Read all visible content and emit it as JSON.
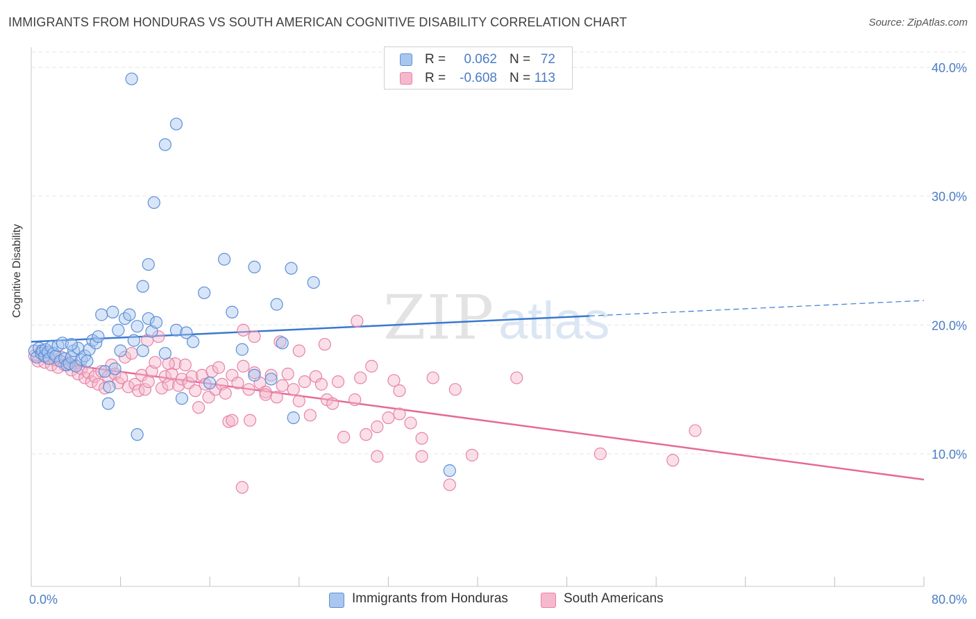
{
  "title": "IMMIGRANTS FROM HONDURAS VS SOUTH AMERICAN COGNITIVE DISABILITY CORRELATION CHART",
  "source": "Source: ZipAtlas.com",
  "watermark": {
    "zip": "ZIP",
    "atlas": "atlas"
  },
  "stats": {
    "blue": {
      "r_label": "R =",
      "r_value": "0.062",
      "n_label": "N =",
      "n_value": "72"
    },
    "pink": {
      "r_label": "R =",
      "r_value": "-0.608",
      "n_label": "N =",
      "n_value": "113"
    }
  },
  "colors": {
    "blue_fill": "#a9c6ef",
    "blue_stroke": "#5b8fd6",
    "blue_line": "#3a78d0",
    "pink_fill": "#f5b8cd",
    "pink_stroke": "#e882a6",
    "pink_line": "#e56a98",
    "grid": "#e6e6e6",
    "axis_text": "#4a7cc4"
  },
  "chart_data": {
    "type": "scatter",
    "ylabel": "Cognitive Disability",
    "xlim": [
      0,
      80
    ],
    "ylim": [
      0,
      42
    ],
    "x_tick_labels": [
      {
        "value": 0,
        "label": "0.0%"
      },
      {
        "value": 80,
        "label": "80.0%"
      }
    ],
    "y_tick_labels": [
      {
        "value": 10,
        "label": "10.0%"
      },
      {
        "value": 20,
        "label": "20.0%"
      },
      {
        "value": 30,
        "label": "30.0%"
      },
      {
        "value": 40,
        "label": "40.0%"
      }
    ],
    "x_minor_ticks": [
      0,
      8,
      16,
      24,
      32,
      40,
      48,
      56,
      64,
      72,
      80
    ],
    "grid": true,
    "legend_position": "bottom-center",
    "series": [
      {
        "name": "Immigrants from Honduras",
        "color": "#5b8fd6",
        "trend": {
          "x0": 0,
          "y0": 18.7,
          "x1": 50,
          "y1": 20.7,
          "dashed_to_x": 80,
          "dashed_to_y": 21.9
        },
        "points": [
          [
            0.3,
            18.0
          ],
          [
            0.5,
            17.5
          ],
          [
            0.7,
            18.2
          ],
          [
            0.9,
            17.8
          ],
          [
            1.0,
            18.0
          ],
          [
            1.2,
            17.6
          ],
          [
            1.3,
            18.1
          ],
          [
            1.5,
            17.9
          ],
          [
            1.6,
            17.4
          ],
          [
            1.8,
            18.3
          ],
          [
            2.0,
            17.8
          ],
          [
            2.2,
            17.6
          ],
          [
            2.4,
            18.4
          ],
          [
            2.6,
            17.2
          ],
          [
            2.8,
            18.6
          ],
          [
            3.0,
            17.4
          ],
          [
            3.2,
            16.9
          ],
          [
            3.4,
            17.0
          ],
          [
            3.6,
            17.5
          ],
          [
            3.8,
            18.0
          ],
          [
            4.0,
            16.8
          ],
          [
            4.2,
            18.2
          ],
          [
            4.5,
            17.3
          ],
          [
            4.8,
            17.6
          ],
          [
            5.0,
            17.2
          ],
          [
            5.2,
            18.1
          ],
          [
            5.5,
            18.8
          ],
          [
            5.8,
            18.6
          ],
          [
            6.0,
            19.1
          ],
          [
            6.3,
            20.8
          ],
          [
            6.6,
            16.4
          ],
          [
            7.0,
            15.2
          ],
          [
            7.3,
            21.0
          ],
          [
            7.8,
            19.6
          ],
          [
            8.0,
            18.0
          ],
          [
            8.4,
            20.5
          ],
          [
            8.8,
            20.8
          ],
          [
            9.2,
            18.8
          ],
          [
            9.5,
            19.9
          ],
          [
            10.0,
            18.0
          ],
          [
            10.5,
            20.5
          ],
          [
            10.8,
            19.5
          ],
          [
            11.2,
            20.2
          ],
          [
            12.0,
            17.8
          ],
          [
            13.0,
            19.6
          ],
          [
            13.5,
            14.3
          ],
          [
            14.5,
            18.7
          ],
          [
            15.5,
            22.5
          ],
          [
            16.0,
            15.5
          ],
          [
            17.3,
            25.1
          ],
          [
            18.0,
            21.0
          ],
          [
            18.9,
            18.1
          ],
          [
            20.0,
            24.5
          ],
          [
            22.5,
            18.6
          ],
          [
            11.0,
            29.5
          ],
          [
            13.0,
            35.6
          ],
          [
            9.0,
            39.1
          ],
          [
            12.0,
            34.0
          ],
          [
            10.5,
            24.7
          ],
          [
            10.0,
            23.0
          ],
          [
            6.9,
            13.9
          ],
          [
            9.5,
            11.5
          ],
          [
            13.9,
            19.4
          ],
          [
            23.3,
            24.4
          ],
          [
            23.5,
            12.8
          ],
          [
            25.3,
            23.3
          ],
          [
            37.5,
            8.7
          ],
          [
            20.0,
            16.1
          ],
          [
            21.5,
            15.8
          ],
          [
            3.6,
            18.5
          ],
          [
            22.0,
            21.6
          ],
          [
            7.5,
            16.6
          ]
        ]
      },
      {
        "name": "South Americans",
        "color": "#e882a6",
        "trend": {
          "x0": 0,
          "y0": 17.3,
          "x1": 80,
          "y1": 8.0
        },
        "points": [
          [
            0.3,
            17.6
          ],
          [
            0.6,
            17.2
          ],
          [
            0.9,
            18.0
          ],
          [
            1.2,
            17.1
          ],
          [
            1.5,
            17.4
          ],
          [
            1.8,
            16.9
          ],
          [
            2.1,
            17.3
          ],
          [
            2.4,
            16.7
          ],
          [
            2.7,
            17.5
          ],
          [
            3.0,
            16.9
          ],
          [
            3.3,
            17.1
          ],
          [
            3.6,
            16.5
          ],
          [
            3.9,
            16.9
          ],
          [
            4.2,
            16.2
          ],
          [
            4.5,
            16.6
          ],
          [
            4.8,
            15.9
          ],
          [
            5.1,
            16.3
          ],
          [
            5.4,
            15.6
          ],
          [
            5.7,
            16.0
          ],
          [
            6.0,
            15.4
          ],
          [
            6.3,
            16.4
          ],
          [
            6.6,
            15.1
          ],
          [
            6.9,
            16.0
          ],
          [
            7.2,
            16.9
          ],
          [
            7.5,
            16.2
          ],
          [
            7.8,
            15.5
          ],
          [
            8.1,
            15.9
          ],
          [
            8.4,
            17.5
          ],
          [
            8.7,
            15.2
          ],
          [
            9.0,
            17.8
          ],
          [
            9.3,
            15.4
          ],
          [
            9.6,
            14.9
          ],
          [
            9.9,
            16.1
          ],
          [
            10.2,
            15.0
          ],
          [
            10.5,
            15.6
          ],
          [
            10.8,
            16.4
          ],
          [
            11.1,
            17.1
          ],
          [
            11.4,
            19.1
          ],
          [
            11.7,
            15.1
          ],
          [
            12.0,
            16.0
          ],
          [
            12.3,
            15.4
          ],
          [
            12.6,
            16.2
          ],
          [
            12.9,
            17.0
          ],
          [
            13.2,
            15.3
          ],
          [
            13.5,
            15.8
          ],
          [
            13.8,
            16.9
          ],
          [
            14.1,
            15.5
          ],
          [
            14.4,
            16.0
          ],
          [
            14.7,
            14.9
          ],
          [
            15.0,
            13.6
          ],
          [
            15.3,
            16.1
          ],
          [
            15.6,
            15.4
          ],
          [
            15.9,
            14.4
          ],
          [
            16.2,
            16.4
          ],
          [
            16.5,
            15.0
          ],
          [
            16.8,
            16.7
          ],
          [
            17.1,
            15.4
          ],
          [
            17.4,
            14.7
          ],
          [
            17.7,
            12.5
          ],
          [
            18.0,
            16.1
          ],
          [
            18.5,
            15.5
          ],
          [
            19.0,
            16.8
          ],
          [
            19.5,
            15.0
          ],
          [
            20.0,
            16.3
          ],
          [
            20.5,
            15.5
          ],
          [
            21.0,
            14.8
          ],
          [
            21.5,
            16.1
          ],
          [
            22.0,
            14.4
          ],
          [
            22.5,
            15.3
          ],
          [
            23.0,
            16.2
          ],
          [
            23.5,
            15.0
          ],
          [
            24.0,
            14.1
          ],
          [
            24.5,
            15.6
          ],
          [
            25.0,
            13.0
          ],
          [
            25.5,
            16.0
          ],
          [
            26.0,
            15.4
          ],
          [
            26.5,
            14.2
          ],
          [
            27.0,
            13.9
          ],
          [
            27.5,
            15.6
          ],
          [
            28.0,
            11.3
          ],
          [
            29.0,
            14.2
          ],
          [
            29.5,
            15.9
          ],
          [
            30.0,
            11.5
          ],
          [
            30.5,
            16.8
          ],
          [
            31.0,
            12.1
          ],
          [
            32.0,
            12.8
          ],
          [
            33.0,
            13.1
          ],
          [
            34.0,
            12.4
          ],
          [
            35.0,
            9.8
          ],
          [
            36.0,
            15.9
          ],
          [
            37.5,
            7.6
          ],
          [
            38.0,
            15.0
          ],
          [
            39.5,
            9.9
          ],
          [
            35.0,
            11.2
          ],
          [
            29.2,
            20.3
          ],
          [
            26.3,
            18.5
          ],
          [
            24.0,
            18.0
          ],
          [
            22.3,
            18.7
          ],
          [
            20.0,
            19.1
          ],
          [
            19.0,
            19.6
          ],
          [
            18.0,
            12.6
          ],
          [
            19.6,
            12.6
          ],
          [
            18.9,
            7.4
          ],
          [
            31.0,
            9.8
          ],
          [
            21.0,
            14.6
          ],
          [
            32.5,
            15.7
          ],
          [
            33.0,
            14.9
          ],
          [
            12.3,
            17.0
          ],
          [
            10.4,
            18.8
          ],
          [
            51.0,
            10.0
          ],
          [
            59.5,
            11.8
          ],
          [
            57.5,
            9.5
          ],
          [
            43.5,
            15.9
          ]
        ]
      }
    ]
  }
}
